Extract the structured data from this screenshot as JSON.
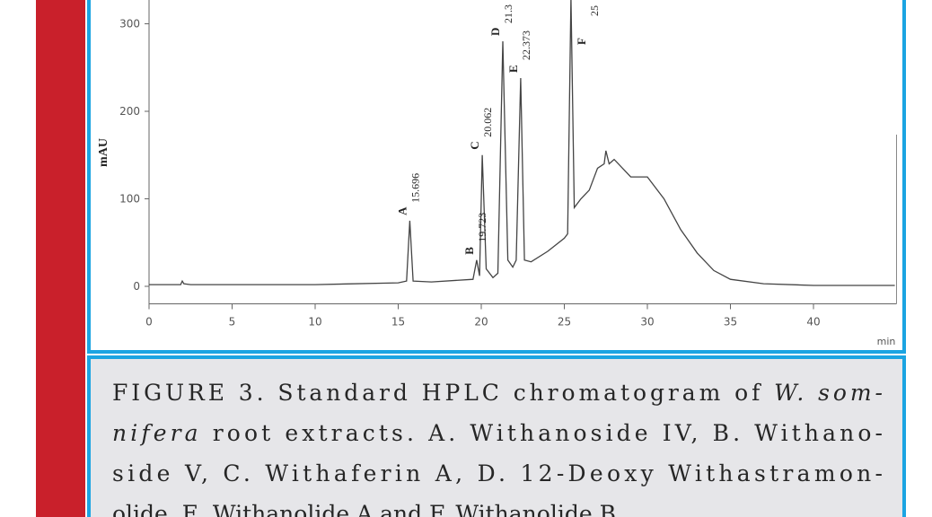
{
  "chart_data": {
    "type": "line",
    "y_label": "mAU",
    "x_label": "min",
    "color": "#444444",
    "xlim": [
      0,
      45
    ],
    "ylim": [
      -20,
      330
    ],
    "xticks": [
      0,
      5,
      10,
      15,
      20,
      25,
      30,
      35,
      40
    ],
    "yticks": [
      0,
      100,
      200,
      300
    ],
    "x": [
      0,
      1.9,
      2,
      2.1,
      2.5,
      10,
      15,
      15.5,
      15.696,
      15.9,
      17,
      19.5,
      19.723,
      19.9,
      20.062,
      20.3,
      20.7,
      21,
      21.3,
      21.6,
      21.9,
      22.1,
      22.373,
      22.6,
      23,
      24,
      25,
      25.2,
      25.4,
      25.6,
      26,
      26.5,
      27,
      27.4,
      27.5,
      27.7,
      28,
      29,
      30,
      31,
      32,
      33,
      34,
      35,
      37,
      40,
      44.9
    ],
    "values": [
      2,
      2,
      6,
      3,
      2,
      2,
      4,
      6,
      75,
      6,
      5,
      8,
      30,
      12,
      150,
      20,
      10,
      15,
      280,
      30,
      22,
      30,
      238,
      30,
      28,
      40,
      55,
      60,
      330,
      90,
      100,
      110,
      135,
      140,
      155,
      140,
      145,
      125,
      125,
      100,
      65,
      38,
      18,
      8,
      3,
      1,
      1
    ],
    "annotations": [
      {
        "label": "A",
        "rt": "15.696"
      },
      {
        "label": "B",
        "rt": "19.723"
      },
      {
        "label": "C",
        "rt": "20.062"
      },
      {
        "label": "D",
        "rt": "21.3"
      },
      {
        "label": "E",
        "rt": "22.373"
      },
      {
        "label": "F",
        "rt": "25"
      }
    ]
  },
  "caption": {
    "lines": [
      [
        {
          "text": "FIGURE 3. Standard HPLC chromatogram of "
        },
        {
          "text": "W. som-",
          "italic": true
        }
      ],
      [
        {
          "text": "nifera",
          "italic": true
        },
        {
          "text": " root extracts. A. Withanoside IV, B. Withano-"
        }
      ],
      [
        {
          "text": "side V, C. Withaferin A, D. 12-Deoxy Withastramon-"
        }
      ],
      [
        {
          "text": "olide, E. Withanolide A and F. Withanolide B"
        }
      ]
    ]
  }
}
